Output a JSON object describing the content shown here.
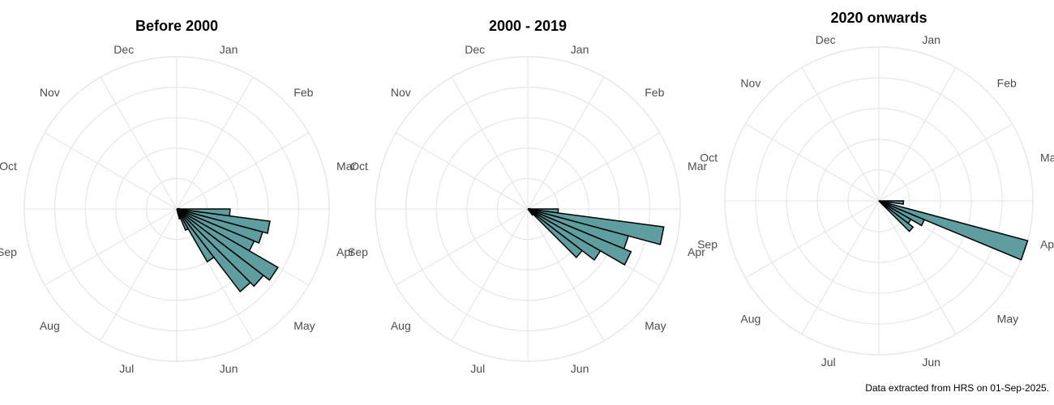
{
  "caption": "Data extracted from HRS on 01-Sep-2025.",
  "colors": {
    "bar_fill": "#5f9ea0",
    "bar_stroke": "#000000",
    "grid": "#e6e6e6",
    "label": "#4d4d4d"
  },
  "chart_data": [
    {
      "type": "polar-bar",
      "title": "Before 2000",
      "months": [
        "Jan",
        "Feb",
        "Mar",
        "Apr",
        "May",
        "Jun",
        "Jul",
        "Aug",
        "Sep",
        "Oct",
        "Nov",
        "Dec"
      ],
      "bins_per_month": 4,
      "radial_max": 6,
      "grid": true,
      "bars": [
        {
          "bin": 11,
          "value": 0.1
        },
        {
          "bin": 12,
          "value": 2.1
        },
        {
          "bin": 13,
          "value": 3.7
        },
        {
          "bin": 14,
          "value": 3.5
        },
        {
          "bin": 15,
          "value": 3.3
        },
        {
          "bin": 16,
          "value": 4.6
        },
        {
          "bin": 17,
          "value": 4.3
        },
        {
          "bin": 18,
          "value": 4.1
        },
        {
          "bin": 19,
          "value": 2.4
        },
        {
          "bin": 20,
          "value": 0.9
        },
        {
          "bin": 21,
          "value": 0.4
        }
      ]
    },
    {
      "type": "polar-bar",
      "title": "2000 - 2019",
      "months": [
        "Jan",
        "Feb",
        "Mar",
        "Apr",
        "May",
        "Jun",
        "Jul",
        "Aug",
        "Sep",
        "Oct",
        "Nov",
        "Dec"
      ],
      "bins_per_month": 4,
      "radial_max": 6,
      "grid": true,
      "bars": [
        {
          "bin": 11,
          "value": 0.1
        },
        {
          "bin": 12,
          "value": 1.2
        },
        {
          "bin": 13,
          "value": 5.4
        },
        {
          "bin": 14,
          "value": 4.1
        },
        {
          "bin": 15,
          "value": 4.4
        },
        {
          "bin": 16,
          "value": 3.3
        },
        {
          "bin": 17,
          "value": 2.7
        },
        {
          "bin": 18,
          "value": 0.3
        }
      ]
    },
    {
      "type": "polar-bar",
      "title": "2020 onwards",
      "months": [
        "Jan",
        "Feb",
        "Mar",
        "Apr",
        "May",
        "Jun",
        "Jul",
        "Aug",
        "Sep",
        "Oct",
        "Nov",
        "Dec"
      ],
      "bins_per_month": 4,
      "radial_max": 5,
      "grid": true,
      "bars": [
        {
          "bin": 12,
          "value": 0.8
        },
        {
          "bin": 14,
          "value": 5.0
        },
        {
          "bin": 15,
          "value": 1.6
        },
        {
          "bin": 16,
          "value": 1.2
        },
        {
          "bin": 17,
          "value": 1.4
        }
      ]
    }
  ]
}
